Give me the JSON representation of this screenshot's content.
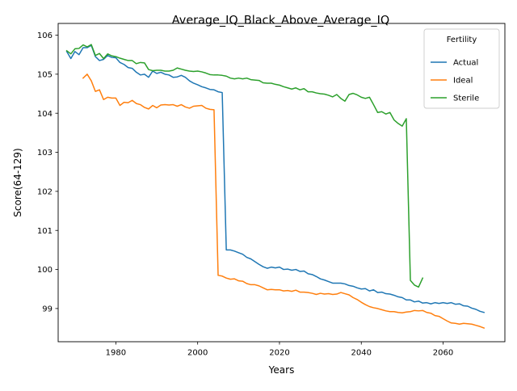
{
  "chart_data": {
    "type": "line",
    "title": "Average_IQ_Black_Above_Average_IQ",
    "xlabel": "Years",
    "ylabel": "Score(64-129)",
    "xlim": [
      1965.9,
      2075.1
    ],
    "ylim": [
      98.15,
      106.3
    ],
    "xticks": [
      1980,
      2000,
      2020,
      2040,
      2060
    ],
    "yticks": [
      99,
      100,
      101,
      102,
      103,
      104,
      105,
      106
    ],
    "grid": false,
    "legend": {
      "title": "Fertility",
      "placement": "top-right"
    },
    "series": [
      {
        "name": "Actual",
        "color": "#1f77b4",
        "points": [
          [
            1968,
            105.58
          ],
          [
            1969,
            105.4
          ],
          [
            1970,
            105.58
          ],
          [
            1971,
            105.5
          ],
          [
            1972,
            105.68
          ],
          [
            1973,
            105.68
          ],
          [
            1974,
            105.74
          ],
          [
            1975,
            105.45
          ],
          [
            1976,
            105.35
          ],
          [
            1977,
            105.38
          ],
          [
            1978,
            105.48
          ],
          [
            1979,
            105.43
          ],
          [
            1980,
            105.42
          ],
          [
            1981,
            105.3
          ],
          [
            1982,
            105.25
          ],
          [
            1983,
            105.17
          ],
          [
            1984,
            105.15
          ],
          [
            1985,
            105.05
          ],
          [
            1986,
            104.98
          ],
          [
            1987,
            105.0
          ],
          [
            1988,
            104.92
          ],
          [
            1989,
            105.08
          ],
          [
            1990,
            105.02
          ],
          [
            1991,
            105.05
          ],
          [
            1992,
            105.0
          ],
          [
            1993,
            104.98
          ],
          [
            1994,
            104.92
          ],
          [
            1995,
            104.93
          ],
          [
            1996,
            104.97
          ],
          [
            1997,
            104.92
          ],
          [
            1998,
            104.83
          ],
          [
            1999,
            104.77
          ],
          [
            2000,
            104.73
          ],
          [
            2001,
            104.68
          ],
          [
            2002,
            104.65
          ],
          [
            2003,
            104.61
          ],
          [
            2004,
            104.6
          ],
          [
            2005,
            104.55
          ],
          [
            2006,
            104.53
          ],
          [
            2007,
            100.5
          ],
          [
            2008,
            100.5
          ],
          [
            2009,
            100.47
          ],
          [
            2010,
            100.43
          ],
          [
            2011,
            100.39
          ],
          [
            2012,
            100.31
          ],
          [
            2013,
            100.27
          ],
          [
            2014,
            100.2
          ],
          [
            2015,
            100.13
          ],
          [
            2016,
            100.07
          ],
          [
            2017,
            100.03
          ],
          [
            2018,
            100.06
          ],
          [
            2019,
            100.04
          ],
          [
            2020,
            100.06
          ],
          [
            2021,
            100.0
          ],
          [
            2022,
            100.01
          ],
          [
            2023,
            99.98
          ],
          [
            2024,
            100.0
          ],
          [
            2025,
            99.95
          ],
          [
            2026,
            99.96
          ],
          [
            2027,
            99.89
          ],
          [
            2028,
            99.87
          ],
          [
            2029,
            99.82
          ],
          [
            2030,
            99.76
          ],
          [
            2031,
            99.73
          ],
          [
            2032,
            99.69
          ],
          [
            2033,
            99.65
          ],
          [
            2034,
            99.65
          ],
          [
            2035,
            99.65
          ],
          [
            2036,
            99.63
          ],
          [
            2037,
            99.59
          ],
          [
            2038,
            99.57
          ],
          [
            2039,
            99.53
          ],
          [
            2040,
            99.5
          ],
          [
            2041,
            99.51
          ],
          [
            2042,
            99.45
          ],
          [
            2043,
            99.48
          ],
          [
            2044,
            99.41
          ],
          [
            2045,
            99.42
          ],
          [
            2046,
            99.38
          ],
          [
            2047,
            99.37
          ],
          [
            2048,
            99.34
          ],
          [
            2049,
            99.3
          ],
          [
            2050,
            99.28
          ],
          [
            2051,
            99.22
          ],
          [
            2052,
            99.22
          ],
          [
            2053,
            99.17
          ],
          [
            2054,
            99.19
          ],
          [
            2055,
            99.14
          ],
          [
            2056,
            99.15
          ],
          [
            2057,
            99.12
          ],
          [
            2058,
            99.15
          ],
          [
            2059,
            99.13
          ],
          [
            2060,
            99.15
          ],
          [
            2061,
            99.13
          ],
          [
            2062,
            99.15
          ],
          [
            2063,
            99.11
          ],
          [
            2064,
            99.12
          ],
          [
            2065,
            99.07
          ],
          [
            2066,
            99.06
          ],
          [
            2067,
            99.01
          ],
          [
            2068,
            98.98
          ],
          [
            2069,
            98.93
          ],
          [
            2070,
            98.9
          ]
        ]
      },
      {
        "name": "Ideal",
        "color": "#ff7f0e",
        "points": [
          [
            1972,
            104.9
          ],
          [
            1973,
            105.0
          ],
          [
            1974,
            104.83
          ],
          [
            1975,
            104.56
          ],
          [
            1976,
            104.6
          ],
          [
            1977,
            104.35
          ],
          [
            1978,
            104.41
          ],
          [
            1979,
            104.39
          ],
          [
            1980,
            104.39
          ],
          [
            1981,
            104.2
          ],
          [
            1982,
            104.28
          ],
          [
            1983,
            104.27
          ],
          [
            1984,
            104.33
          ],
          [
            1985,
            104.25
          ],
          [
            1986,
            104.22
          ],
          [
            1987,
            104.15
          ],
          [
            1988,
            104.11
          ],
          [
            1989,
            104.2
          ],
          [
            1990,
            104.14
          ],
          [
            1991,
            104.21
          ],
          [
            1992,
            104.22
          ],
          [
            1993,
            104.21
          ],
          [
            1994,
            104.22
          ],
          [
            1995,
            104.18
          ],
          [
            1996,
            104.22
          ],
          [
            1997,
            104.16
          ],
          [
            1998,
            104.13
          ],
          [
            1999,
            104.18
          ],
          [
            2000,
            104.19
          ],
          [
            2001,
            104.2
          ],
          [
            2002,
            104.13
          ],
          [
            2003,
            104.1
          ],
          [
            2004,
            104.09
          ],
          [
            2005,
            99.85
          ],
          [
            2006,
            99.83
          ],
          [
            2007,
            99.78
          ],
          [
            2008,
            99.75
          ],
          [
            2009,
            99.76
          ],
          [
            2010,
            99.71
          ],
          [
            2011,
            99.7
          ],
          [
            2012,
            99.64
          ],
          [
            2013,
            99.61
          ],
          [
            2014,
            99.61
          ],
          [
            2015,
            99.58
          ],
          [
            2016,
            99.53
          ],
          [
            2017,
            99.48
          ],
          [
            2018,
            99.49
          ],
          [
            2019,
            99.48
          ],
          [
            2020,
            99.48
          ],
          [
            2021,
            99.45
          ],
          [
            2022,
            99.46
          ],
          [
            2023,
            99.44
          ],
          [
            2024,
            99.47
          ],
          [
            2025,
            99.42
          ],
          [
            2026,
            99.42
          ],
          [
            2027,
            99.41
          ],
          [
            2028,
            99.39
          ],
          [
            2029,
            99.36
          ],
          [
            2030,
            99.39
          ],
          [
            2031,
            99.37
          ],
          [
            2032,
            99.38
          ],
          [
            2033,
            99.36
          ],
          [
            2034,
            99.37
          ],
          [
            2035,
            99.41
          ],
          [
            2036,
            99.38
          ],
          [
            2037,
            99.35
          ],
          [
            2038,
            99.28
          ],
          [
            2039,
            99.23
          ],
          [
            2040,
            99.16
          ],
          [
            2041,
            99.1
          ],
          [
            2042,
            99.05
          ],
          [
            2043,
            99.02
          ],
          [
            2044,
            99.0
          ],
          [
            2045,
            98.97
          ],
          [
            2046,
            98.94
          ],
          [
            2047,
            98.92
          ],
          [
            2048,
            98.92
          ],
          [
            2049,
            98.9
          ],
          [
            2050,
            98.89
          ],
          [
            2051,
            98.91
          ],
          [
            2052,
            98.92
          ],
          [
            2053,
            98.95
          ],
          [
            2054,
            98.94
          ],
          [
            2055,
            98.95
          ],
          [
            2056,
            98.9
          ],
          [
            2057,
            98.88
          ],
          [
            2058,
            98.82
          ],
          [
            2059,
            98.8
          ],
          [
            2060,
            98.74
          ],
          [
            2061,
            98.68
          ],
          [
            2062,
            98.63
          ],
          [
            2063,
            98.62
          ],
          [
            2064,
            98.6
          ],
          [
            2065,
            98.62
          ],
          [
            2066,
            98.61
          ],
          [
            2067,
            98.6
          ],
          [
            2068,
            98.57
          ],
          [
            2069,
            98.54
          ],
          [
            2070,
            98.5
          ]
        ]
      },
      {
        "name": "Sterile",
        "color": "#2ca02c",
        "points": [
          [
            1968,
            105.6
          ],
          [
            1969,
            105.52
          ],
          [
            1970,
            105.65
          ],
          [
            1971,
            105.66
          ],
          [
            1972,
            105.75
          ],
          [
            1973,
            105.7
          ],
          [
            1974,
            105.76
          ],
          [
            1975,
            105.48
          ],
          [
            1976,
            105.53
          ],
          [
            1977,
            105.4
          ],
          [
            1978,
            105.52
          ],
          [
            1979,
            105.47
          ],
          [
            1980,
            105.45
          ],
          [
            1981,
            105.41
          ],
          [
            1982,
            105.38
          ],
          [
            1983,
            105.35
          ],
          [
            1984,
            105.35
          ],
          [
            1985,
            105.27
          ],
          [
            1986,
            105.3
          ],
          [
            1987,
            105.29
          ],
          [
            1988,
            105.12
          ],
          [
            1989,
            105.09
          ],
          [
            1990,
            105.1
          ],
          [
            1991,
            105.1
          ],
          [
            1992,
            105.08
          ],
          [
            1993,
            105.08
          ],
          [
            1994,
            105.1
          ],
          [
            1995,
            105.16
          ],
          [
            1996,
            105.13
          ],
          [
            1997,
            105.1
          ],
          [
            1998,
            105.08
          ],
          [
            1999,
            105.07
          ],
          [
            2000,
            105.08
          ],
          [
            2001,
            105.06
          ],
          [
            2002,
            105.03
          ],
          [
            2003,
            104.99
          ],
          [
            2004,
            104.98
          ],
          [
            2005,
            104.98
          ],
          [
            2006,
            104.97
          ],
          [
            2007,
            104.95
          ],
          [
            2008,
            104.9
          ],
          [
            2009,
            104.88
          ],
          [
            2010,
            104.9
          ],
          [
            2011,
            104.88
          ],
          [
            2012,
            104.9
          ],
          [
            2013,
            104.86
          ],
          [
            2014,
            104.85
          ],
          [
            2015,
            104.84
          ],
          [
            2016,
            104.78
          ],
          [
            2017,
            104.77
          ],
          [
            2018,
            104.77
          ],
          [
            2019,
            104.74
          ],
          [
            2020,
            104.72
          ],
          [
            2021,
            104.68
          ],
          [
            2022,
            104.65
          ],
          [
            2023,
            104.62
          ],
          [
            2024,
            104.65
          ],
          [
            2025,
            104.6
          ],
          [
            2026,
            104.63
          ],
          [
            2027,
            104.55
          ],
          [
            2028,
            104.55
          ],
          [
            2029,
            104.52
          ],
          [
            2030,
            104.5
          ],
          [
            2031,
            104.49
          ],
          [
            2032,
            104.46
          ],
          [
            2033,
            104.42
          ],
          [
            2034,
            104.48
          ],
          [
            2035,
            104.38
          ],
          [
            2036,
            104.31
          ],
          [
            2037,
            104.48
          ],
          [
            2038,
            104.51
          ],
          [
            2039,
            104.47
          ],
          [
            2040,
            104.41
          ],
          [
            2041,
            104.38
          ],
          [
            2042,
            104.41
          ],
          [
            2043,
            104.22
          ],
          [
            2044,
            104.02
          ],
          [
            2045,
            104.04
          ],
          [
            2046,
            103.98
          ],
          [
            2047,
            104.02
          ],
          [
            2048,
            103.83
          ],
          [
            2049,
            103.74
          ],
          [
            2050,
            103.67
          ],
          [
            2051,
            103.86
          ],
          [
            2052,
            99.72
          ],
          [
            2053,
            99.6
          ],
          [
            2054,
            99.55
          ],
          [
            2055,
            99.78
          ]
        ]
      }
    ]
  }
}
